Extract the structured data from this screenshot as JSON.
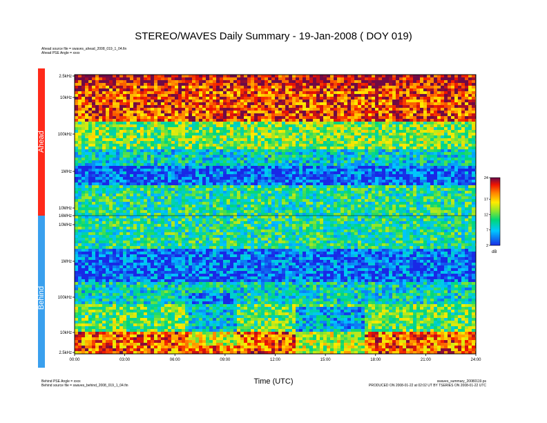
{
  "title": "STEREO/WAVES Daily Summary - 19-Jan-2008 ( DOY 019)",
  "ahead_info": {
    "source_file": "Ahead source file = swaves_ahead_2008_019_1_04.fin",
    "pse_angle": "Ahead PSE Angle = xxxx"
  },
  "behind_info": {
    "pse_angle": "Behind PSE Angle = xxxx",
    "source_file": "Behind source file = swaves_behind_2008_019_1_04.fin"
  },
  "footer_right": {
    "filename": "swaves_summary_20080119.ps",
    "produced": "PRODUCED ON 2008-01-22 at 02:02 UT BY TSERIES ON 2008-01-22 UTC"
  },
  "spacecraft_labels": {
    "ahead": "Ahead",
    "behind": "Behind"
  },
  "colors": {
    "ahead": "#ff2a1a",
    "behind": "#3aa0ee"
  },
  "chart_data": {
    "type": "heatmap",
    "xlabel": "Time (UTC)",
    "x_ticks": [
      "00:00",
      "03:00",
      "06:00",
      "09:00",
      "12:00",
      "15:00",
      "18:00",
      "21:00",
      "24:00"
    ],
    "x_range_hours": [
      0,
      24
    ],
    "panels": [
      {
        "name": "Ahead",
        "y_scale": "log",
        "y_ticks": [
          "2.5kHz",
          "10kHz",
          "100kHz",
          "1MHz",
          "10MHz",
          "16MHz"
        ]
      },
      {
        "name": "Behind",
        "y_scale": "log",
        "y_ticks": [
          "10MHz",
          "1MHz",
          "100kHz",
          "10kHz",
          "2.5kHz"
        ]
      }
    ],
    "colorbar": {
      "ticks": [
        24,
        17,
        12,
        7,
        2
      ],
      "unit": "dB",
      "range": [
        2,
        24
      ]
    }
  }
}
